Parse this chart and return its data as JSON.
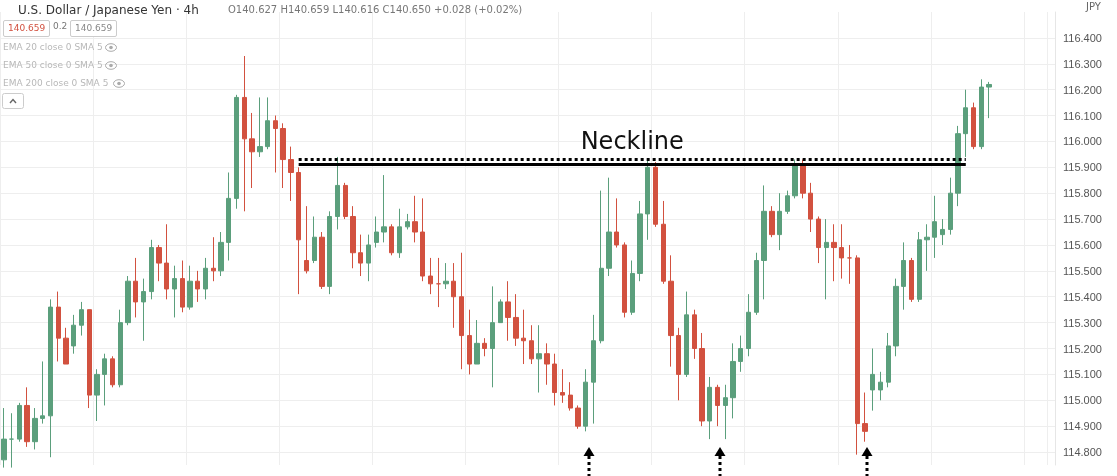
{
  "chart_data": {
    "type": "candlestick",
    "categories": [
      null,
      null,
      null,
      null,
      null,
      null,
      null,
      null,
      null,
      null,
      null,
      null,
      null,
      null,
      null,
      null,
      null,
      null,
      null,
      null,
      null,
      null,
      null,
      null,
      null,
      null,
      null,
      null,
      null,
      null,
      null,
      null,
      null,
      null,
      null,
      null,
      null,
      null,
      null,
      null,
      null,
      null,
      null,
      null,
      null,
      null,
      null,
      null,
      null,
      null,
      null,
      null,
      null,
      null,
      null,
      null,
      null,
      null,
      null,
      null,
      null,
      null,
      null,
      null,
      null,
      null,
      null,
      null,
      null,
      null,
      null,
      null,
      null,
      null,
      null,
      null,
      null,
      null,
      null,
      null,
      null,
      null,
      null,
      null,
      null,
      null,
      null,
      null,
      null,
      null,
      null,
      null,
      null,
      null,
      null,
      null,
      null,
      null,
      null,
      null,
      null,
      null,
      null,
      null,
      null,
      null,
      null,
      null,
      null,
      null,
      null,
      null,
      null,
      null,
      null,
      null,
      null,
      null,
      null,
      null,
      null,
      null,
      null,
      null,
      null,
      null,
      null,
      null,
      null,
      null,
      null,
      null,
      null,
      null,
      null,
      null
    ],
    "ohlc": [
      [
        114.77,
        114.97,
        114.74,
        114.85
      ],
      [
        114.85,
        114.95,
        114.74,
        114.85
      ],
      [
        114.85,
        114.99,
        114.84,
        114.98
      ],
      [
        114.98,
        115.05,
        114.82,
        114.84
      ],
      [
        114.84,
        114.97,
        114.81,
        114.93
      ],
      [
        114.93,
        115.15,
        114.91,
        114.94
      ],
      [
        114.94,
        115.39,
        114.78,
        115.36
      ],
      [
        115.36,
        115.42,
        115.15,
        115.24
      ],
      [
        115.24,
        115.28,
        115.14,
        115.14
      ],
      [
        115.21,
        115.33,
        115.18,
        115.29
      ],
      [
        115.29,
        115.38,
        115.25,
        115.35
      ],
      [
        115.35,
        115.35,
        114.97,
        115.02
      ],
      [
        115.02,
        115.12,
        114.92,
        115.1
      ],
      [
        115.1,
        115.18,
        114.98,
        115.16
      ],
      [
        115.16,
        115.17,
        115.05,
        115.06
      ],
      [
        115.06,
        115.35,
        115.05,
        115.3
      ],
      [
        115.3,
        115.48,
        115.29,
        115.46
      ],
      [
        115.46,
        115.55,
        115.32,
        115.38
      ],
      [
        115.38,
        115.47,
        115.23,
        115.42
      ],
      [
        115.42,
        115.62,
        115.39,
        115.59
      ],
      [
        115.59,
        115.6,
        115.46,
        115.53
      ],
      [
        115.53,
        115.68,
        115.39,
        115.43
      ],
      [
        115.43,
        115.52,
        115.32,
        115.47
      ],
      [
        115.47,
        115.54,
        115.34,
        115.36
      ],
      [
        115.36,
        115.52,
        115.35,
        115.46
      ],
      [
        115.46,
        115.5,
        115.38,
        115.43
      ],
      [
        115.43,
        115.55,
        115.39,
        115.51
      ],
      [
        115.51,
        115.63,
        115.46,
        115.5
      ],
      [
        115.5,
        115.65,
        115.48,
        115.61
      ],
      [
        115.61,
        115.88,
        115.54,
        115.78
      ],
      [
        115.78,
        116.18,
        115.74,
        116.17
      ],
      [
        116.17,
        116.33,
        115.73,
        116.01
      ],
      [
        116.01,
        116.11,
        115.82,
        115.96
      ],
      [
        115.96,
        116.17,
        115.94,
        115.98
      ],
      [
        115.98,
        116.17,
        115.97,
        116.08
      ],
      [
        116.08,
        116.1,
        115.88,
        116.05
      ],
      [
        116.05,
        116.07,
        115.82,
        115.93
      ],
      [
        115.93,
        115.98,
        115.77,
        115.88
      ],
      [
        115.88,
        115.9,
        115.41,
        115.62
      ],
      [
        115.54,
        115.75,
        115.49,
        115.5
      ],
      [
        115.54,
        115.71,
        115.53,
        115.63
      ],
      [
        115.63,
        115.65,
        115.43,
        115.44
      ],
      [
        115.44,
        115.73,
        115.41,
        115.71
      ],
      [
        115.71,
        115.94,
        115.66,
        115.83
      ],
      [
        115.83,
        115.84,
        115.7,
        115.71
      ],
      [
        115.71,
        115.75,
        115.51,
        115.57
      ],
      [
        115.57,
        115.64,
        115.48,
        115.53
      ],
      [
        115.53,
        115.64,
        115.46,
        115.6
      ],
      [
        115.61,
        115.71,
        115.59,
        115.65
      ],
      [
        115.65,
        115.87,
        115.61,
        115.67
      ],
      [
        115.67,
        115.68,
        115.56,
        115.57
      ],
      [
        115.57,
        115.74,
        115.55,
        115.67
      ],
      [
        115.67,
        115.72,
        115.66,
        115.69
      ],
      [
        115.69,
        115.79,
        115.61,
        115.65
      ],
      [
        115.65,
        115.78,
        115.46,
        115.48
      ],
      [
        115.48,
        115.55,
        115.41,
        115.45
      ],
      [
        115.45,
        115.55,
        115.36,
        115.45
      ],
      [
        115.45,
        115.53,
        115.43,
        115.46
      ],
      [
        115.46,
        115.53,
        115.28,
        115.4
      ],
      [
        115.4,
        115.57,
        115.12,
        115.25
      ],
      [
        115.25,
        115.35,
        115.1,
        115.14
      ],
      [
        115.14,
        115.31,
        115.14,
        115.22
      ],
      [
        115.22,
        115.24,
        115.17,
        115.2
      ],
      [
        115.2,
        115.44,
        115.05,
        115.3
      ],
      [
        115.3,
        115.39,
        115.3,
        115.38
      ],
      [
        115.38,
        115.46,
        115.23,
        115.32
      ],
      [
        115.32,
        115.41,
        115.21,
        115.24
      ],
      [
        115.24,
        115.35,
        115.14,
        115.23
      ],
      [
        115.23,
        115.29,
        115.14,
        115.16
      ],
      [
        115.16,
        115.29,
        115.03,
        115.18
      ],
      [
        115.18,
        115.22,
        115.06,
        115.14
      ],
      [
        115.14,
        115.18,
        114.98,
        115.03
      ],
      [
        115.03,
        115.12,
        114.99,
        115.02
      ],
      [
        115.02,
        115.07,
        114.96,
        114.97
      ],
      [
        114.97,
        114.98,
        114.89,
        114.9
      ],
      [
        114.9,
        115.12,
        114.88,
        115.07
      ],
      [
        115.07,
        115.33,
        114.91,
        115.23
      ],
      [
        115.23,
        115.81,
        115.22,
        115.51
      ],
      [
        115.51,
        115.86,
        115.48,
        115.65
      ],
      [
        115.65,
        115.78,
        115.59,
        115.6
      ],
      [
        115.6,
        115.61,
        115.32,
        115.34
      ],
      [
        115.34,
        115.54,
        115.33,
        115.49
      ],
      [
        115.49,
        115.77,
        115.46,
        115.72
      ],
      [
        115.72,
        115.93,
        115.62,
        115.9
      ],
      [
        115.9,
        115.92,
        115.67,
        115.68
      ],
      [
        115.68,
        115.77,
        115.45,
        115.46
      ],
      [
        115.46,
        115.56,
        115.13,
        115.25
      ],
      [
        115.25,
        115.28,
        115.0,
        115.1
      ],
      [
        115.1,
        115.42,
        115.09,
        115.33
      ],
      [
        115.33,
        115.35,
        115.16,
        115.2
      ],
      [
        115.2,
        115.26,
        114.9,
        114.92
      ],
      [
        114.92,
        115.09,
        114.85,
        115.05
      ],
      [
        115.05,
        115.06,
        114.9,
        114.98
      ],
      [
        114.98,
        115.06,
        114.85,
        115.01
      ],
      [
        115.01,
        115.22,
        114.93,
        115.15
      ],
      [
        115.15,
        115.25,
        115.11,
        115.2
      ],
      [
        115.2,
        115.41,
        115.17,
        115.34
      ],
      [
        115.34,
        115.57,
        115.33,
        115.54
      ],
      [
        115.54,
        115.83,
        115.39,
        115.73
      ],
      [
        115.73,
        115.75,
        115.63,
        115.64
      ],
      [
        115.64,
        115.8,
        115.58,
        115.73
      ],
      [
        115.73,
        115.81,
        115.72,
        115.79
      ],
      [
        115.79,
        115.93,
        115.78,
        115.91
      ],
      [
        115.91,
        115.93,
        115.78,
        115.8
      ],
      [
        115.8,
        115.84,
        115.65,
        115.7
      ],
      [
        115.7,
        115.71,
        115.53,
        115.59
      ],
      [
        115.59,
        115.7,
        115.39,
        115.61
      ],
      [
        115.61,
        115.68,
        115.46,
        115.59
      ],
      [
        115.59,
        115.68,
        115.47,
        115.55
      ],
      [
        115.55,
        115.6,
        115.45,
        115.55
      ],
      [
        115.55,
        115.56,
        114.79,
        114.91
      ],
      [
        114.91,
        115.03,
        114.84,
        114.88
      ],
      [
        115.04,
        115.2,
        114.96,
        115.1
      ],
      [
        115.04,
        115.11,
        115.0,
        115.07
      ],
      [
        115.07,
        115.26,
        115.05,
        115.21
      ],
      [
        115.21,
        115.47,
        115.17,
        115.44
      ],
      [
        115.44,
        115.61,
        115.35,
        115.54
      ],
      [
        115.54,
        115.55,
        115.38,
        115.39
      ],
      [
        115.39,
        115.65,
        115.38,
        115.62
      ],
      [
        115.62,
        115.68,
        115.5,
        115.63
      ],
      [
        115.63,
        115.79,
        115.55,
        115.69
      ],
      [
        115.64,
        115.7,
        115.6,
        115.66
      ],
      [
        115.66,
        115.86,
        115.64,
        115.8
      ],
      [
        115.8,
        116.06,
        115.75,
        116.03
      ],
      [
        116.03,
        116.2,
        115.94,
        116.13
      ],
      [
        116.13,
        116.15,
        115.97,
        115.98
      ],
      [
        115.98,
        116.24,
        115.97,
        116.21
      ],
      [
        116.21,
        116.23,
        116.09,
        116.22
      ],
      null,
      null,
      null,
      null,
      null,
      null,
      null,
      null
    ],
    "colors": [
      "#5b9f7c",
      "#5b9f7c",
      "#5b9f7c",
      "#d2513f",
      "#5b9f7c",
      "#5b9f7c",
      "#5b9f7c",
      "#d2513f",
      "#d2513f",
      "#5b9f7c",
      "#5b9f7c",
      "#d2513f",
      "#5b9f7c",
      "#5b9f7c",
      "#d2513f",
      "#5b9f7c",
      "#5b9f7c",
      "#d2513f",
      "#5b9f7c",
      "#5b9f7c",
      "#d2513f",
      "#d2513f",
      "#5b9f7c",
      "#d2513f",
      "#5b9f7c",
      "#d2513f",
      "#5b9f7c",
      "#d2513f",
      "#5b9f7c",
      "#5b9f7c",
      "#5b9f7c",
      "#d2513f",
      "#d2513f",
      "#5b9f7c",
      "#5b9f7c",
      "#d2513f",
      "#d2513f",
      "#d2513f",
      "#d2513f",
      "#d2513f",
      "#5b9f7c",
      "#d2513f",
      "#5b9f7c",
      "#5b9f7c",
      "#d2513f",
      "#d2513f",
      "#d2513f",
      "#5b9f7c",
      "#5b9f7c",
      "#5b9f7c",
      "#d2513f",
      "#5b9f7c",
      "#5b9f7c",
      "#d2513f",
      "#d2513f",
      "#d2513f",
      "#d2513f",
      "#5b9f7c",
      "#d2513f",
      "#d2513f",
      "#d2513f",
      "#5b9f7c",
      "#d2513f",
      "#5b9f7c",
      "#5b9f7c",
      "#d2513f",
      "#d2513f",
      "#d2513f",
      "#d2513f",
      "#5b9f7c",
      "#d2513f",
      "#d2513f",
      "#d2513f",
      "#d2513f",
      "#d2513f",
      "#5b9f7c",
      "#5b9f7c",
      "#5b9f7c",
      "#5b9f7c",
      "#d2513f",
      "#d2513f",
      "#5b9f7c",
      "#5b9f7c",
      "#5b9f7c",
      "#d2513f",
      "#d2513f",
      "#d2513f",
      "#d2513f",
      "#5b9f7c",
      "#d2513f",
      "#d2513f",
      "#5b9f7c",
      "#d2513f",
      "#5b9f7c",
      "#5b9f7c",
      "#5b9f7c",
      "#5b9f7c",
      "#5b9f7c",
      "#5b9f7c",
      "#d2513f",
      "#5b9f7c",
      "#5b9f7c",
      "#5b9f7c",
      "#d2513f",
      "#d2513f",
      "#d2513f",
      "#5b9f7c",
      "#d2513f",
      "#d2513f",
      "#d2513f",
      "#d2513f",
      "#d2513f",
      "#5b9f7c",
      "#5b9f7c",
      "#5b9f7c",
      "#5b9f7c",
      "#5b9f7c",
      "#d2513f",
      "#5b9f7c",
      "#5b9f7c",
      "#5b9f7c",
      "#5b9f7c",
      "#5b9f7c",
      "#5b9f7c",
      "#5b9f7c",
      "#d2513f",
      "#5b9f7c",
      "#5b9f7c",
      null,
      null,
      null,
      null,
      null,
      null,
      null,
      null
    ],
    "ylim": [
      114.75,
      116.5
    ],
    "yticks": [
      {
        "value": 114.8,
        "label": "114.800"
      },
      {
        "value": 114.9,
        "label": "114.900"
      },
      {
        "value": 115.0,
        "label": "115.000"
      },
      {
        "value": 115.1,
        "label": "115.100"
      },
      {
        "value": 115.2,
        "label": "115.200"
      },
      {
        "value": 115.3,
        "label": "115.300"
      },
      {
        "value": 115.4,
        "label": "115.400"
      },
      {
        "value": 115.5,
        "label": "115.500"
      },
      {
        "value": 115.6,
        "label": "115.600"
      },
      {
        "value": 115.7,
        "label": "115.700"
      },
      {
        "value": 115.8,
        "label": "115.800"
      },
      {
        "value": 115.9,
        "label": "115.900"
      },
      {
        "value": 116.0,
        "label": "116.000"
      },
      {
        "value": 116.1,
        "label": "116.100"
      },
      {
        "value": 116.2,
        "label": "116.200"
      },
      {
        "value": 116.3,
        "label": "116.300"
      },
      {
        "value": 116.4,
        "label": "116.400"
      }
    ],
    "tick_labels": "y",
    "grid": true,
    "ref_lines": [
      {
        "axis": "y",
        "value": 115.91,
        "label": "Neckline",
        "color": "#000000",
        "line_style": "solid"
      },
      {
        "axis": "y",
        "value": 115.93,
        "color": "#000000",
        "line_style": "dashed"
      }
    ],
    "annotations": [
      "U.S. Dollar / Japanese Yen · 4h",
      "O140.627 H140.659 L140.616 C140.650 +0.028 (+0.02%)",
      "140.659",
      "0.2",
      "140.659",
      "EMA 20 close 0 SMA 5",
      "EMA 50 close 0 SMA 5",
      "EMA 200 close 0 SMA 5",
      "JPY"
    ]
  }
}
